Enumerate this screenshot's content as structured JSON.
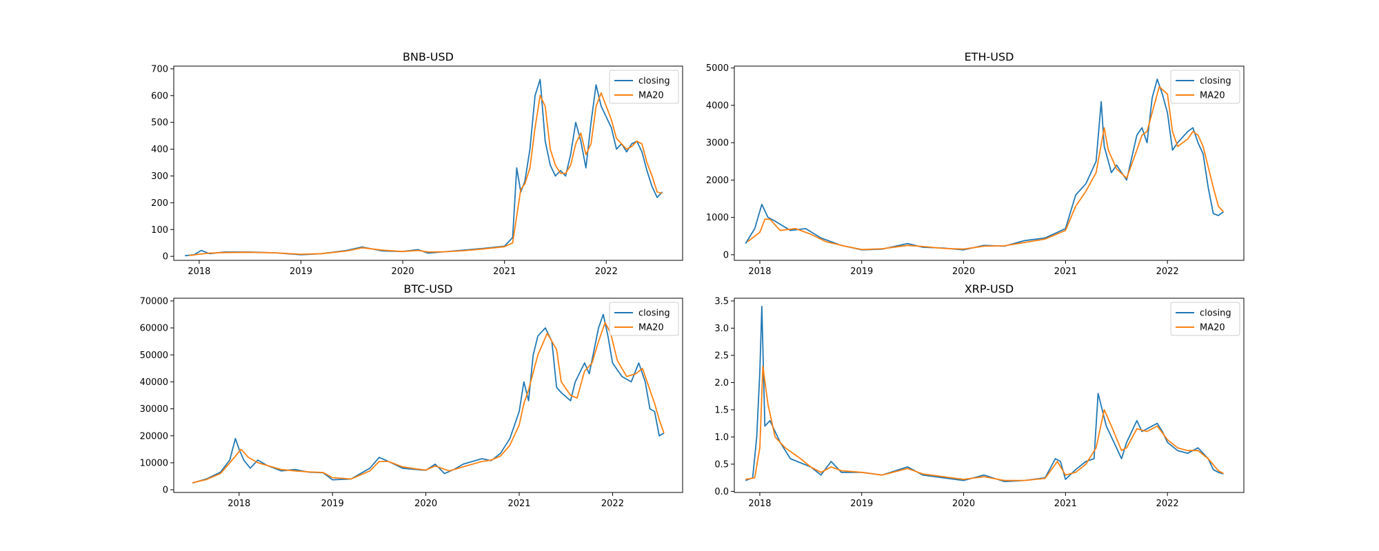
{
  "colors": {
    "closing": "#1f77b4",
    "ma20": "#ff7f0e",
    "axes": "#000000",
    "background": "#ffffff"
  },
  "chart_data": [
    {
      "type": "line",
      "title": "BNB-USD",
      "xlabel": "",
      "ylabel": "",
      "xlim": [
        2017.75,
        2022.75
      ],
      "ylim": [
        -15,
        710
      ],
      "x_ticks": [
        2018,
        2019,
        2020,
        2021,
        2022
      ],
      "x_tick_labels": [
        "2018",
        "2019",
        "2020",
        "2021",
        "2022"
      ],
      "y_ticks": [
        0,
        100,
        200,
        300,
        400,
        500,
        600,
        700
      ],
      "y_tick_labels": [
        "0",
        "100",
        "200",
        "300",
        "400",
        "500",
        "600",
        "700"
      ],
      "legend": {
        "position": "upper right",
        "entries": [
          "closing",
          "MA20"
        ]
      },
      "grid": false,
      "series": [
        {
          "name": "closing",
          "x": [
            2017.86,
            2017.95,
            2018.02,
            2018.1,
            2018.25,
            2018.5,
            2018.75,
            2019.0,
            2019.2,
            2019.45,
            2019.6,
            2019.8,
            2020.0,
            2020.15,
            2020.25,
            2020.4,
            2020.6,
            2020.8,
            2021.0,
            2021.08,
            2021.12,
            2021.16,
            2021.2,
            2021.25,
            2021.3,
            2021.35,
            2021.4,
            2021.45,
            2021.5,
            2021.55,
            2021.6,
            2021.65,
            2021.7,
            2021.75,
            2021.8,
            2021.85,
            2021.9,
            2021.95,
            2022.0,
            2022.05,
            2022.1,
            2022.15,
            2022.2,
            2022.25,
            2022.3,
            2022.35,
            2022.4,
            2022.45,
            2022.5,
            2022.55
          ],
          "values": [
            2,
            6,
            22,
            10,
            16,
            16,
            13,
            6,
            10,
            22,
            35,
            20,
            18,
            25,
            12,
            17,
            23,
            30,
            38,
            70,
            330,
            240,
            280,
            400,
            600,
            660,
            430,
            340,
            300,
            320,
            300,
            380,
            500,
            430,
            330,
            500,
            640,
            560,
            520,
            480,
            400,
            420,
            390,
            420,
            430,
            390,
            320,
            260,
            220,
            240
          ]
        },
        {
          "name": "MA20",
          "x": [
            2017.9,
            2018.0,
            2018.1,
            2018.25,
            2018.5,
            2018.75,
            2019.0,
            2019.2,
            2019.45,
            2019.6,
            2019.8,
            2020.0,
            2020.15,
            2020.25,
            2020.4,
            2020.6,
            2020.8,
            2021.0,
            2021.08,
            2021.12,
            2021.16,
            2021.2,
            2021.25,
            2021.3,
            2021.35,
            2021.4,
            2021.45,
            2021.5,
            2021.55,
            2021.6,
            2021.65,
            2021.7,
            2021.75,
            2021.8,
            2021.85,
            2021.9,
            2021.95,
            2022.0,
            2022.05,
            2022.1,
            2022.15,
            2022.2,
            2022.25,
            2022.3,
            2022.35,
            2022.4,
            2022.45,
            2022.5,
            2022.55
          ],
          "values": [
            3,
            8,
            12,
            14,
            15,
            13,
            8,
            10,
            20,
            32,
            23,
            18,
            22,
            16,
            17,
            21,
            28,
            36,
            50,
            150,
            250,
            270,
            330,
            480,
            600,
            560,
            400,
            340,
            310,
            310,
            340,
            420,
            460,
            380,
            420,
            560,
            610,
            560,
            510,
            440,
            420,
            400,
            410,
            430,
            420,
            350,
            300,
            240,
            235
          ]
        }
      ]
    },
    {
      "type": "line",
      "title": "ETH-USD",
      "xlabel": "",
      "ylabel": "",
      "xlim": [
        2017.75,
        2022.75
      ],
      "ylim": [
        -150,
        5050
      ],
      "x_ticks": [
        2018,
        2019,
        2020,
        2021,
        2022
      ],
      "x_tick_labels": [
        "2018",
        "2019",
        "2020",
        "2021",
        "2022"
      ],
      "y_ticks": [
        0,
        1000,
        2000,
        3000,
        4000,
        5000
      ],
      "y_tick_labels": [
        "0",
        "1000",
        "2000",
        "3000",
        "4000",
        "5000"
      ],
      "legend": {
        "position": "upper right",
        "entries": [
          "closing",
          "MA20"
        ]
      },
      "grid": false,
      "series": [
        {
          "name": "closing",
          "x": [
            2017.86,
            2017.95,
            2018.02,
            2018.08,
            2018.15,
            2018.3,
            2018.45,
            2018.6,
            2018.8,
            2019.0,
            2019.2,
            2019.45,
            2019.6,
            2019.8,
            2020.0,
            2020.2,
            2020.4,
            2020.6,
            2020.8,
            2021.0,
            2021.1,
            2021.2,
            2021.3,
            2021.35,
            2021.38,
            2021.45,
            2021.5,
            2021.6,
            2021.7,
            2021.75,
            2021.8,
            2021.85,
            2021.9,
            2021.95,
            2022.0,
            2022.05,
            2022.1,
            2022.2,
            2022.25,
            2022.3,
            2022.35,
            2022.4,
            2022.45,
            2022.5,
            2022.55
          ],
          "values": [
            300,
            700,
            1350,
            1000,
            900,
            650,
            700,
            450,
            250,
            130,
            150,
            300,
            200,
            180,
            130,
            250,
            230,
            380,
            450,
            700,
            1600,
            1900,
            2500,
            4100,
            2900,
            2200,
            2400,
            2000,
            3200,
            3400,
            3000,
            4200,
            4700,
            4300,
            3800,
            2800,
            3000,
            3300,
            3400,
            3000,
            2700,
            1800,
            1100,
            1050,
            1150
          ]
        },
        {
          "name": "MA20",
          "x": [
            2017.88,
            2018.0,
            2018.05,
            2018.1,
            2018.2,
            2018.35,
            2018.5,
            2018.65,
            2018.85,
            2019.0,
            2019.2,
            2019.45,
            2019.6,
            2019.8,
            2020.0,
            2020.2,
            2020.4,
            2020.6,
            2020.8,
            2021.0,
            2021.1,
            2021.2,
            2021.3,
            2021.38,
            2021.42,
            2021.5,
            2021.6,
            2021.7,
            2021.75,
            2021.8,
            2021.87,
            2021.92,
            2022.0,
            2022.05,
            2022.1,
            2022.2,
            2022.25,
            2022.3,
            2022.35,
            2022.45,
            2022.5,
            2022.55
          ],
          "values": [
            350,
            600,
            950,
            950,
            650,
            700,
            550,
            350,
            220,
            140,
            160,
            250,
            220,
            170,
            150,
            230,
            240,
            330,
            420,
            650,
            1300,
            1700,
            2200,
            3400,
            2800,
            2300,
            2050,
            2800,
            3200,
            3300,
            4000,
            4500,
            4300,
            3300,
            2900,
            3100,
            3300,
            3200,
            2900,
            1800,
            1300,
            1150
          ]
        }
      ]
    },
    {
      "type": "line",
      "title": "BTC-USD",
      "xlabel": "",
      "ylabel": "",
      "xlim": [
        2017.3,
        2022.75
      ],
      "ylim": [
        -1000,
        71000
      ],
      "x_ticks": [
        2018,
        2019,
        2020,
        2021,
        2022
      ],
      "x_tick_labels": [
        "2018",
        "2019",
        "2020",
        "2021",
        "2022"
      ],
      "y_ticks": [
        0,
        10000,
        20000,
        30000,
        40000,
        50000,
        60000,
        70000
      ],
      "y_tick_labels": [
        "0",
        "10000",
        "20000",
        "30000",
        "40000",
        "50000",
        "60000",
        "70000"
      ],
      "legend": {
        "position": "upper right",
        "entries": [
          "closing",
          "MA20"
        ]
      },
      "grid": false,
      "series": [
        {
          "name": "closing",
          "x": [
            2017.5,
            2017.65,
            2017.8,
            2017.9,
            2017.96,
            2018.0,
            2018.05,
            2018.12,
            2018.2,
            2018.3,
            2018.45,
            2018.6,
            2018.75,
            2018.9,
            2019.0,
            2019.2,
            2019.4,
            2019.5,
            2019.6,
            2019.75,
            2019.9,
            2020.0,
            2020.1,
            2020.2,
            2020.3,
            2020.4,
            2020.6,
            2020.7,
            2020.8,
            2020.9,
            2021.0,
            2021.05,
            2021.1,
            2021.15,
            2021.2,
            2021.28,
            2021.35,
            2021.4,
            2021.45,
            2021.55,
            2021.6,
            2021.7,
            2021.75,
            2021.85,
            2021.9,
            2021.95,
            2022.0,
            2022.1,
            2022.2,
            2022.28,
            2022.35,
            2022.4,
            2022.45,
            2022.5,
            2022.55
          ],
          "values": [
            2500,
            4000,
            6500,
            11000,
            19000,
            15000,
            11000,
            8000,
            11000,
            9000,
            7000,
            7500,
            6500,
            6300,
            3700,
            4000,
            8000,
            12000,
            10500,
            8000,
            7500,
            7200,
            9500,
            6000,
            7500,
            9500,
            11500,
            10800,
            13500,
            19000,
            29000,
            40000,
            33000,
            50000,
            57000,
            60000,
            55000,
            38000,
            36000,
            33000,
            40000,
            47000,
            43000,
            60000,
            65000,
            57000,
            47000,
            42000,
            40000,
            47000,
            40000,
            30000,
            29000,
            20000,
            21000
          ]
        },
        {
          "name": "MA20",
          "x": [
            2017.5,
            2017.65,
            2017.8,
            2017.95,
            2018.02,
            2018.1,
            2018.2,
            2018.3,
            2018.45,
            2018.6,
            2018.75,
            2018.9,
            2019.0,
            2019.2,
            2019.4,
            2019.5,
            2019.6,
            2019.75,
            2019.9,
            2020.0,
            2020.1,
            2020.25,
            2020.4,
            2020.6,
            2020.7,
            2020.8,
            2020.9,
            2021.0,
            2021.05,
            2021.1,
            2021.2,
            2021.3,
            2021.4,
            2021.45,
            2021.55,
            2021.62,
            2021.7,
            2021.78,
            2021.85,
            2021.92,
            2021.98,
            2022.05,
            2022.15,
            2022.25,
            2022.32,
            2022.4,
            2022.45,
            2022.5,
            2022.55
          ],
          "values": [
            2600,
            3800,
            6000,
            12000,
            15000,
            12000,
            10000,
            9000,
            7500,
            7000,
            6600,
            6400,
            4500,
            4000,
            7000,
            10500,
            10500,
            8500,
            7700,
            7300,
            8800,
            7000,
            8500,
            10500,
            11000,
            12500,
            16500,
            24000,
            32000,
            37000,
            50000,
            58000,
            52000,
            40000,
            35000,
            34000,
            44000,
            47000,
            55000,
            62000,
            58000,
            48000,
            42000,
            43000,
            45000,
            37000,
            32000,
            26000,
            21000
          ]
        }
      ]
    },
    {
      "type": "line",
      "title": "XRP-USD",
      "xlabel": "",
      "ylabel": "",
      "xlim": [
        2017.75,
        2022.75
      ],
      "ylim": [
        -0.02,
        3.55
      ],
      "x_ticks": [
        2018,
        2019,
        2020,
        2021,
        2022
      ],
      "x_tick_labels": [
        "2018",
        "2019",
        "2020",
        "2021",
        "2022"
      ],
      "y_ticks": [
        0.0,
        0.5,
        1.0,
        1.5,
        2.0,
        2.5,
        3.0,
        3.5
      ],
      "y_tick_labels": [
        "0.0",
        "0.5",
        "1.0",
        "1.5",
        "2.0",
        "2.5",
        "3.0",
        "3.5"
      ],
      "legend": {
        "position": "upper right",
        "entries": [
          "closing",
          "MA20"
        ]
      },
      "grid": false,
      "series": [
        {
          "name": "closing",
          "x": [
            2017.86,
            2017.93,
            2017.97,
            2018.0,
            2018.02,
            2018.05,
            2018.1,
            2018.2,
            2018.3,
            2018.5,
            2018.6,
            2018.7,
            2018.8,
            2019.0,
            2019.2,
            2019.45,
            2019.6,
            2019.8,
            2020.0,
            2020.2,
            2020.4,
            2020.6,
            2020.8,
            2020.9,
            2020.95,
            2021.0,
            2021.1,
            2021.2,
            2021.28,
            2021.32,
            2021.4,
            2021.5,
            2021.55,
            2021.6,
            2021.7,
            2021.75,
            2021.85,
            2021.9,
            2021.95,
            2022.0,
            2022.1,
            2022.2,
            2022.3,
            2022.35,
            2022.4,
            2022.45,
            2022.5,
            2022.55
          ],
          "values": [
            0.2,
            0.25,
            1.0,
            2.2,
            3.4,
            1.2,
            1.3,
            0.9,
            0.6,
            0.45,
            0.3,
            0.55,
            0.35,
            0.35,
            0.3,
            0.45,
            0.3,
            0.25,
            0.2,
            0.3,
            0.18,
            0.2,
            0.25,
            0.6,
            0.55,
            0.22,
            0.4,
            0.55,
            0.6,
            1.8,
            1.2,
            0.8,
            0.6,
            0.9,
            1.3,
            1.1,
            1.2,
            1.25,
            1.1,
            0.9,
            0.75,
            0.7,
            0.8,
            0.7,
            0.6,
            0.4,
            0.35,
            0.32
          ]
        },
        {
          "name": "MA20",
          "x": [
            2017.86,
            2017.95,
            2018.0,
            2018.03,
            2018.08,
            2018.15,
            2018.25,
            2018.4,
            2018.5,
            2018.6,
            2018.7,
            2018.8,
            2019.0,
            2019.2,
            2019.45,
            2019.6,
            2019.8,
            2020.0,
            2020.2,
            2020.4,
            2020.6,
            2020.8,
            2020.92,
            2021.0,
            2021.1,
            2021.2,
            2021.3,
            2021.38,
            2021.45,
            2021.55,
            2021.6,
            2021.7,
            2021.8,
            2021.9,
            2022.0,
            2022.1,
            2022.2,
            2022.3,
            2022.4,
            2022.5,
            2022.55
          ],
          "values": [
            0.22,
            0.25,
            0.8,
            2.3,
            1.6,
            1.0,
            0.8,
            0.6,
            0.45,
            0.35,
            0.45,
            0.38,
            0.35,
            0.3,
            0.42,
            0.32,
            0.27,
            0.22,
            0.27,
            0.2,
            0.2,
            0.24,
            0.55,
            0.3,
            0.35,
            0.5,
            0.8,
            1.5,
            1.2,
            0.75,
            0.8,
            1.15,
            1.1,
            1.2,
            0.95,
            0.8,
            0.75,
            0.75,
            0.6,
            0.38,
            0.33
          ]
        }
      ]
    }
  ]
}
